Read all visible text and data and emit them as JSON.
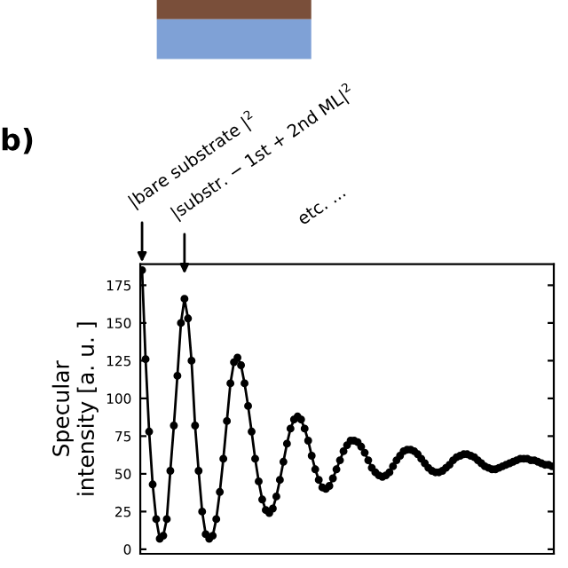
{
  "chart_data": {
    "type": "line",
    "ylabel": "Specular\nintensity [a. u. ]",
    "annotations": [
      "b)",
      "|bare substrate |$^{2}$",
      "|substr. − 1st + 2nd ML|$^{2}$",
      "etc. ..."
    ],
    "categories": [
      null,
      null,
      null,
      null,
      null,
      null,
      null,
      null,
      null,
      null,
      null,
      null,
      null,
      null,
      null,
      null,
      null,
      null,
      null,
      null,
      null,
      null,
      null,
      null,
      null,
      null,
      null,
      null,
      null,
      null,
      null,
      null,
      null,
      null,
      null,
      null,
      null,
      null,
      null,
      null,
      null,
      null,
      null,
      null,
      null,
      null,
      null,
      null,
      null,
      null,
      null,
      null,
      null,
      null,
      null,
      null,
      null,
      null,
      null,
      null,
      null,
      null,
      null,
      null,
      null,
      null,
      null,
      null,
      null,
      null,
      null,
      null,
      null,
      null,
      null,
      null,
      null,
      null,
      null,
      null,
      null,
      null,
      null,
      null,
      null,
      null,
      null,
      null,
      null,
      null,
      null,
      null,
      null,
      null,
      null,
      null,
      null,
      null,
      null,
      null,
      null,
      null,
      null,
      null,
      null,
      null,
      null,
      null,
      null,
      null,
      null,
      null,
      null,
      null,
      null,
      null,
      null
    ],
    "series": [
      {
        "color": "#000000",
        "values": [
          185,
          126,
          78,
          43,
          20,
          7,
          9,
          20,
          52,
          82,
          115,
          150,
          166,
          153,
          125,
          82,
          52,
          25,
          10,
          7,
          9,
          20,
          38,
          60,
          85,
          110,
          124,
          127,
          122,
          110,
          95,
          78,
          60,
          45,
          33,
          26,
          24,
          27,
          35,
          46,
          58,
          70,
          80,
          86,
          88,
          86,
          80,
          72,
          62,
          53,
          46,
          41,
          40,
          42,
          47,
          53,
          59,
          65,
          69,
          72,
          72,
          71,
          68,
          64,
          59,
          54,
          51,
          49,
          48,
          49,
          51,
          55,
          59,
          62,
          65,
          66,
          66,
          65,
          63,
          60,
          57,
          54,
          52,
          51,
          51,
          52,
          54,
          56,
          59,
          61,
          62,
          63,
          63,
          62,
          61,
          59,
          57,
          55,
          54,
          53,
          53,
          54,
          55,
          56,
          57,
          58,
          59,
          60,
          60,
          60,
          59,
          59,
          58,
          57,
          56,
          56,
          55
        ]
      }
    ],
    "ylim": [
      -3,
      189
    ],
    "yticks": [
      0,
      25,
      50,
      75,
      100,
      125,
      150,
      175
    ],
    "tick_labels": "y",
    "marker": "circle",
    "line_style": "solid",
    "grid": false
  }
}
